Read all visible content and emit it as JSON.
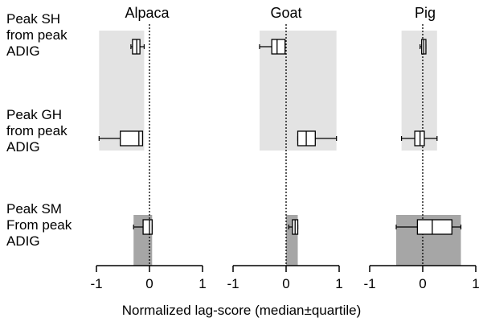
{
  "chart_data": [
    {
      "type": "boxplot",
      "title": "Alpaca",
      "xlim": [
        -1,
        1
      ],
      "xticks": [
        "-1",
        "0",
        "1"
      ],
      "row_labels": [
        "Peak SH\nfrom peak\nADIG",
        "Peak GH\nfrom peak\nADIG",
        "Peak SM\nFrom peak\nADIG"
      ],
      "rows": [
        {
          "whisker_low": -0.35,
          "q1": -0.32,
          "median": -0.24,
          "q3": -0.18,
          "whisker_high": -0.1,
          "shaded": [
            -0.95,
            -0.1
          ],
          "shade": "light"
        },
        {
          "whisker_low": -0.95,
          "q1": -0.55,
          "median": -0.2,
          "q3": -0.13,
          "whisker_high": -0.13,
          "shaded": [
            -0.95,
            -0.1
          ],
          "shade": "light"
        },
        {
          "whisker_low": -0.3,
          "q1": -0.12,
          "median": 0.0,
          "q3": 0.05,
          "whisker_high": 0.05,
          "shaded": [
            -0.3,
            0.05
          ],
          "shade": "dark"
        }
      ]
    },
    {
      "type": "boxplot",
      "title": "Goat",
      "xlim": [
        -1,
        1
      ],
      "xticks": [
        "-1",
        "0",
        "1"
      ],
      "rows": [
        {
          "whisker_low": -0.5,
          "q1": -0.27,
          "median": -0.17,
          "q3": -0.02,
          "whisker_high": -0.02,
          "shaded": [
            -0.5,
            0.95
          ],
          "shade": "light"
        },
        {
          "whisker_low": 0.22,
          "q1": 0.22,
          "median": 0.38,
          "q3": 0.55,
          "whisker_high": 0.95,
          "shaded": [
            -0.5,
            0.95
          ],
          "shade": "light"
        },
        {
          "whisker_low": 0.05,
          "q1": 0.12,
          "median": 0.17,
          "q3": 0.22,
          "whisker_high": 0.22,
          "shaded": [
            0.0,
            0.22
          ],
          "shade": "dark"
        }
      ]
    },
    {
      "type": "boxplot",
      "title": "Pig",
      "xlim": [
        -1,
        1
      ],
      "xticks": [
        "-1",
        "0",
        "1"
      ],
      "rows": [
        {
          "whisker_low": -0.05,
          "q1": -0.02,
          "median": 0.02,
          "q3": 0.06,
          "whisker_high": 0.06,
          "shaded": [
            -0.4,
            0.27
          ],
          "shade": "light"
        },
        {
          "whisker_low": -0.4,
          "q1": -0.15,
          "median": -0.05,
          "q3": 0.03,
          "whisker_high": 0.27,
          "shaded": [
            -0.4,
            0.27
          ],
          "shade": "light"
        },
        {
          "whisker_low": -0.5,
          "q1": -0.1,
          "median": 0.18,
          "q3": 0.55,
          "whisker_high": 0.72,
          "shaded": [
            -0.5,
            0.72
          ],
          "shade": "dark"
        }
      ]
    }
  ],
  "xlabel": "Normalized lag-score (median±quartile)",
  "colors": {
    "light_shade": "#e3e3e3",
    "dark_shade": "#a6a6a6",
    "box_fill": "#ffffff",
    "line": "#000000"
  }
}
